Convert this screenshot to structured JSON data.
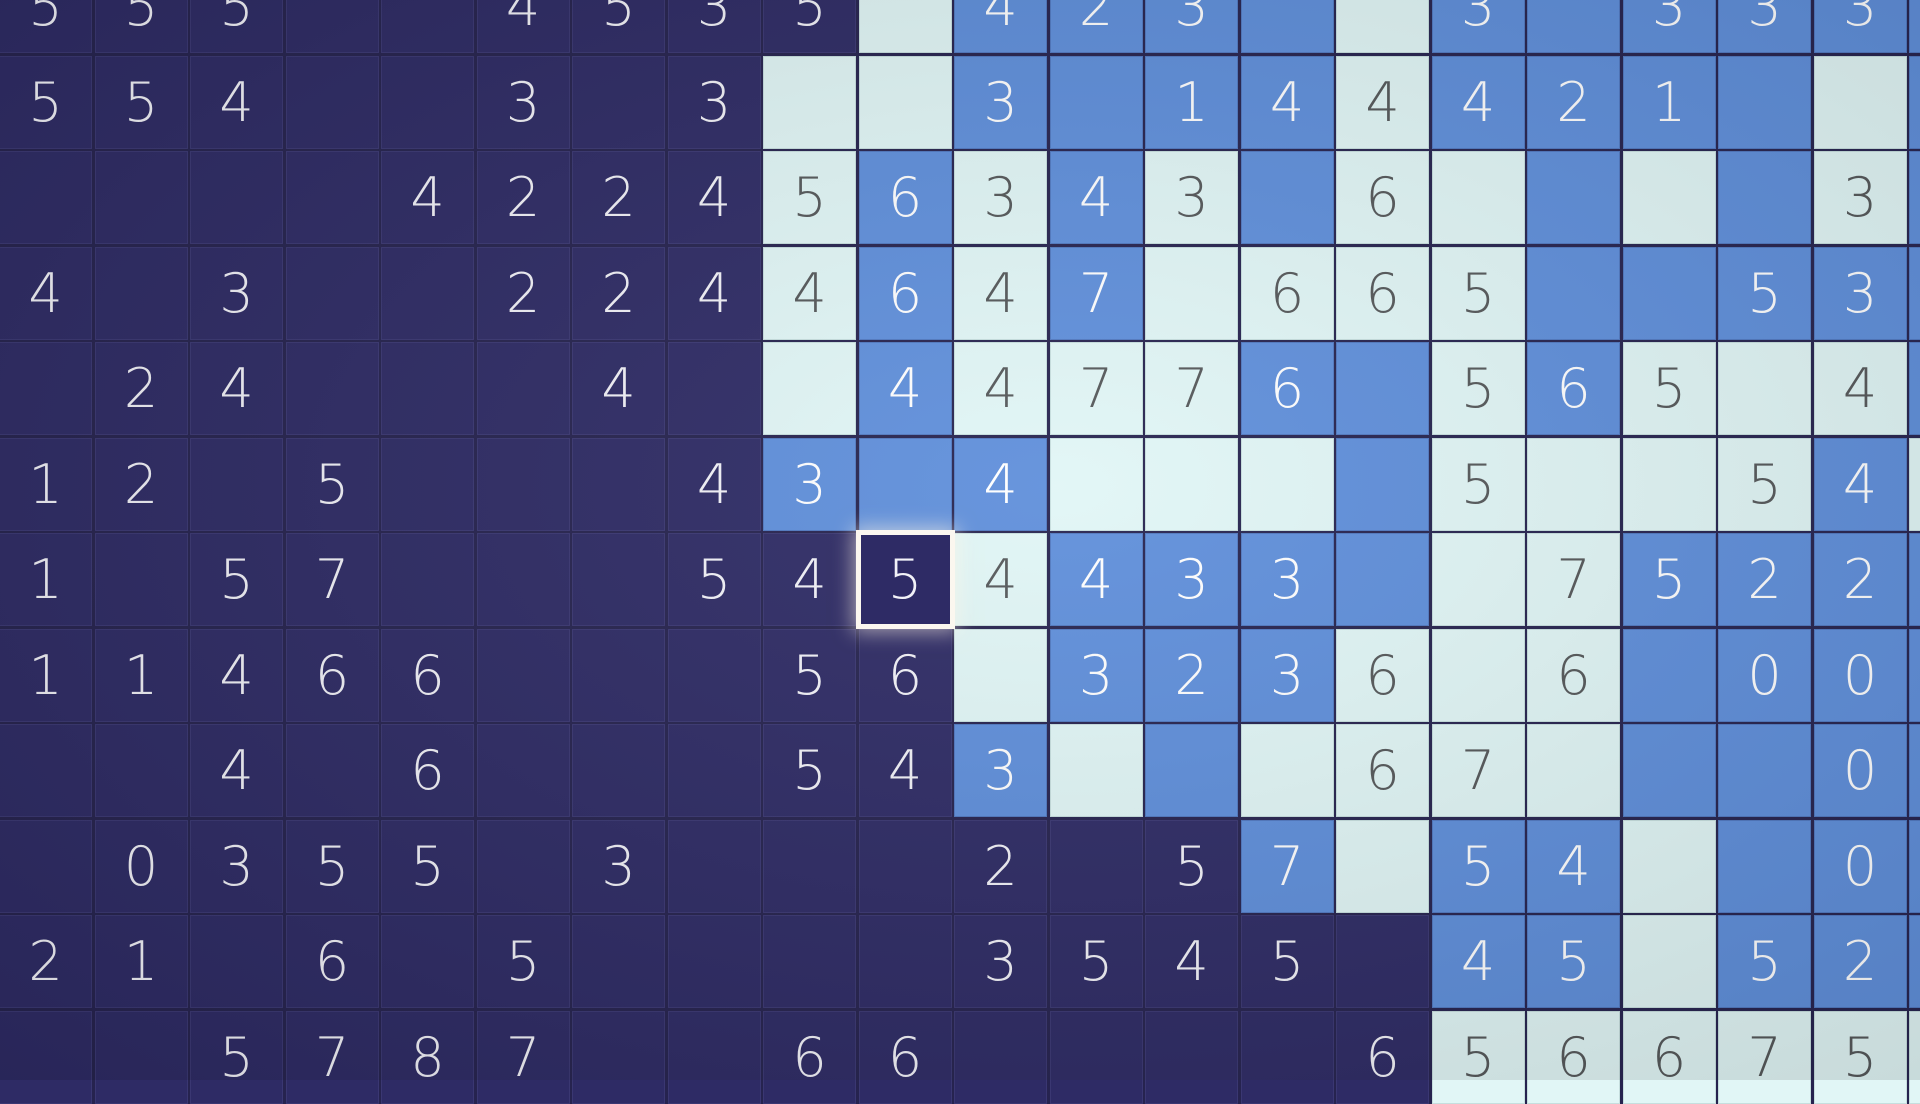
{
  "game": {
    "colors": {
      "dark": "#2e2b65",
      "light": "#e1f6f6",
      "blue": "#5f8fdb",
      "selection": "#fbf7ef"
    },
    "selected": {
      "row": 6,
      "col": 9
    },
    "rows": [
      {
        "states": "DDDDDDDDDLBBBBLBBBBBB",
        "values": [
          "5",
          "5",
          "5",
          "",
          "",
          "4",
          "5",
          "3",
          "5",
          "",
          "4",
          "2",
          "3",
          "",
          "",
          "3",
          "",
          "3",
          "3",
          "3",
          ""
        ]
      },
      {
        "states": "DDDDDDDDLLBBBBLBBBBLB",
        "values": [
          "5",
          "5",
          "4",
          "",
          "",
          "3",
          "",
          "3",
          "",
          "",
          "3",
          "",
          "1",
          "4",
          "4",
          "4",
          "2",
          "1",
          "",
          "",
          ""
        ]
      },
      {
        "states": "DDDDDDDDLBLBLBLLBLBLB",
        "values": [
          "",
          "",
          "",
          "",
          "4",
          "2",
          "2",
          "4",
          "5",
          "6",
          "3",
          "4",
          "3",
          "",
          "6",
          "",
          "",
          "",
          "",
          "3",
          ""
        ]
      },
      {
        "states": "DDDDDDDDLBLBLLLLBBBBB",
        "values": [
          "4",
          "",
          "3",
          "",
          "",
          "2",
          "2",
          "4",
          "4",
          "6",
          "4",
          "7",
          "",
          "6",
          "6",
          "5",
          "",
          "",
          "5",
          "3",
          ""
        ]
      },
      {
        "states": "DDDDDDDDLBLLLBBLBLLLB",
        "values": [
          "",
          "2",
          "4",
          "",
          "",
          "",
          "4",
          "",
          "",
          "4",
          "4",
          "7",
          "7",
          "6",
          "",
          "5",
          "6",
          "5",
          "",
          "4",
          ""
        ]
      },
      {
        "states": "DDDDDDDDBBBLLLBLLLLBL",
        "values": [
          "1",
          "2",
          "",
          "5",
          "",
          "",
          "",
          "4",
          "3",
          "",
          "4",
          "",
          "",
          "",
          "",
          "5",
          "",
          "",
          "5",
          "4",
          ""
        ]
      },
      {
        "states": "DDDDDDDDDDLBBBBLLBBBB",
        "values": [
          "1",
          "",
          "5",
          "7",
          "",
          "",
          "",
          "5",
          "4",
          "5",
          "4",
          "4",
          "3",
          "3",
          "",
          "",
          "7",
          "5",
          "2",
          "2",
          ""
        ]
      },
      {
        "states": "DDDDDDDDDDLBBBLLLBBBB",
        "values": [
          "1",
          "1",
          "4",
          "6",
          "6",
          "",
          "",
          "",
          "5",
          "6",
          "",
          "3",
          "2",
          "3",
          "6",
          "",
          "6",
          "",
          "0",
          "0",
          ""
        ]
      },
      {
        "states": "DDDDDDDDDDBLBLLLLBBBB",
        "values": [
          "",
          "",
          "4",
          "",
          "6",
          "",
          "",
          "",
          "5",
          "4",
          "3",
          "",
          "",
          "",
          "6",
          "7",
          "",
          "",
          "",
          "0",
          ""
        ]
      },
      {
        "states": "DDDDDDDDDDDDDBLBBLBBB",
        "values": [
          "",
          "0",
          "3",
          "5",
          "5",
          "",
          "3",
          "",
          "",
          "",
          "2",
          "",
          "5",
          "7",
          "",
          "5",
          "4",
          "",
          "",
          "0",
          ""
        ]
      },
      {
        "states": "DDDDDDDDDDDDDDDBBLBBB",
        "values": [
          "2",
          "1",
          "",
          "6",
          "",
          "5",
          "",
          "",
          "",
          "",
          "3",
          "5",
          "4",
          "5",
          "",
          "4",
          "5",
          "",
          "5",
          "2",
          ""
        ]
      },
      {
        "states": "DDDDDDDDDDDDDDDLLLLLL",
        "values": [
          "",
          "",
          "5",
          "7",
          "8",
          "7",
          "",
          "",
          "6",
          "6",
          "",
          "",
          "",
          "",
          "6",
          "5",
          "6",
          "6",
          "7",
          "5",
          ""
        ]
      }
    ]
  }
}
